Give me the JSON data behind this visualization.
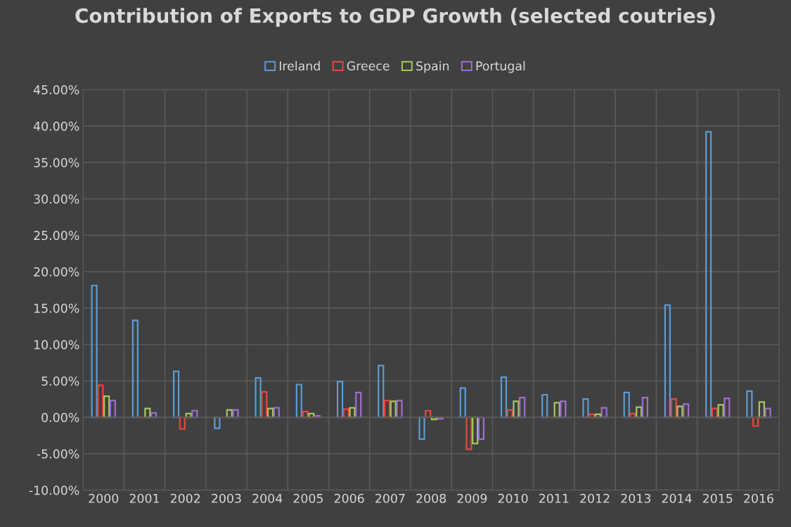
{
  "chart_data": {
    "type": "bar",
    "title": "Contribution of Exports to GDP Growth (selected coutries)",
    "categories": [
      "2000",
      "2001",
      "2002",
      "2003",
      "2004",
      "2005",
      "2006",
      "2007",
      "2008",
      "2009",
      "2010",
      "2011",
      "2012",
      "2013",
      "2014",
      "2015",
      "2016"
    ],
    "series": [
      {
        "name": "Ireland",
        "color": "#5b9bd5",
        "values": [
          18.1,
          13.3,
          6.3,
          -1.5,
          5.4,
          4.5,
          4.9,
          7.1,
          -3.0,
          4.0,
          5.5,
          3.1,
          2.5,
          3.4,
          15.4,
          39.2,
          3.6
        ]
      },
      {
        "name": "Greece",
        "color": "#e8473c",
        "values": [
          4.4,
          0.0,
          -1.6,
          0.0,
          3.5,
          0.8,
          1.1,
          2.3,
          0.9,
          -4.4,
          1.0,
          0.0,
          0.4,
          0.5,
          2.5,
          1.2,
          -1.2
        ]
      },
      {
        "name": "Spain",
        "color": "#a5c85a",
        "values": [
          2.9,
          1.2,
          0.5,
          1.0,
          1.2,
          0.5,
          1.3,
          2.2,
          -0.3,
          -3.6,
          2.2,
          2.0,
          0.4,
          1.4,
          1.5,
          1.7,
          2.1
        ]
      },
      {
        "name": "Portugal",
        "color": "#9e6fcf",
        "values": [
          2.3,
          0.6,
          0.9,
          1.0,
          1.3,
          0.2,
          3.4,
          2.3,
          -0.2,
          -3.0,
          2.7,
          2.2,
          1.3,
          2.7,
          1.8,
          2.6,
          1.2
        ]
      }
    ],
    "ylim": [
      -10,
      45
    ],
    "yticks": [
      {
        "value": -10,
        "label": "-10.00%"
      },
      {
        "value": -5,
        "label": "-5.00%"
      },
      {
        "value": 0,
        "label": "0.00%"
      },
      {
        "value": 5,
        "label": "5.00%"
      },
      {
        "value": 10,
        "label": "10.00%"
      },
      {
        "value": 15,
        "label": "15.00%"
      },
      {
        "value": 20,
        "label": "20.00%"
      },
      {
        "value": 25,
        "label": "25.00%"
      },
      {
        "value": 30,
        "label": "30.00%"
      },
      {
        "value": 35,
        "label": "35.00%"
      },
      {
        "value": 40,
        "label": "40.00%"
      },
      {
        "value": 45,
        "label": "45.00%"
      }
    ],
    "grid": true,
    "legend": "top"
  }
}
